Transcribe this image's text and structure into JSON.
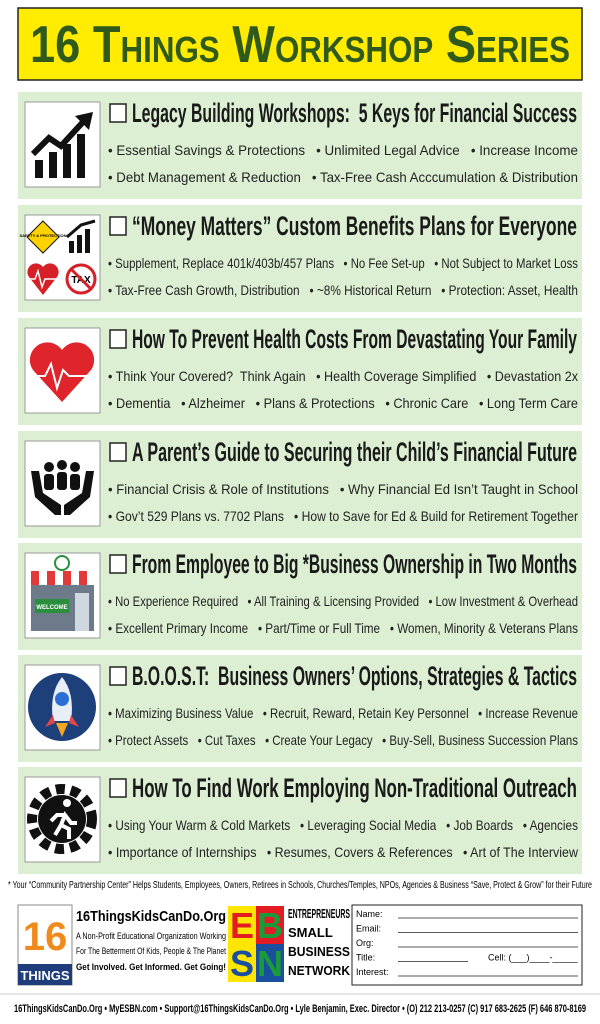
{
  "header": {
    "title": "16 Things Workshop Series"
  },
  "workshops": [
    {
      "title": "Legacy Building Workshops:  5 Keys for Financial Success",
      "lines": [
        [
          "• Essential Savings & Protections",
          "• Unlimited Legal Advice",
          "• Increase Income"
        ],
        [
          "• Debt Management & Reduction",
          "• Tax-Free Cash Acccumulation & Distribution"
        ]
      ]
    },
    {
      "title": "“Money Matters” Custom Benefits Plans for Everyone",
      "icon_text": [
        "SAFETY & PROTECTION",
        "TAX"
      ],
      "lines": [
        [
          "• Supplement, Replace 401k/403b/457 Plans",
          "• No Fee Set-up",
          "• Not Subject to Market Loss"
        ],
        [
          "• Tax-Free Cash Growth, Distribution",
          "• ~8% Historical Return",
          "• Protection: Asset, Health"
        ]
      ]
    },
    {
      "title": "How To Prevent Health Costs From Devastating Your Family",
      "lines": [
        [
          "• Think Your Covered?  Think Again",
          "• Health Coverage Simplified",
          "• Devastation 2x"
        ],
        [
          "• Dementia",
          "• Alzheimer",
          "• Plans & Protections",
          "• Chronic Care",
          "• Long Term Care"
        ]
      ]
    },
    {
      "title": "A Parent’s Guide to Securing their Child’s Financial Future",
      "lines": [
        [
          "• Financial Crisis & Role of Institutions",
          "• Why Financial Ed Isn’t Taught in School"
        ],
        [
          "• Gov’t 529 Plans vs. 7702 Plans",
          "• How to Save for Ed & Build for Retirement Together"
        ]
      ]
    },
    {
      "title": "From Employee to Big *Business Ownership in Two Months",
      "icon_text": [
        "WELCOME"
      ],
      "lines": [
        [
          "• No Experience Required",
          "• All Training & Licensing Provided",
          "• Low Investment & Overhead"
        ],
        [
          "• Excellent Primary Income",
          "• Part/Time or Full Time",
          "• Women, Minority & Veterans Plans"
        ]
      ]
    },
    {
      "title": "B.O.O.S.T:  Business Owners’ Options, Strategies & Tactics",
      "lines": [
        [
          "• Maximizing Business Value",
          "• Recruit, Reward, Retain Key Personnel",
          "• Increase Revenue"
        ],
        [
          "• Protect Assets",
          "• Cut Taxes",
          "• Create Your Legacy",
          "• Buy-Sell, Business Succession Plans"
        ]
      ]
    },
    {
      "title": "How To Find Work Employing Non-Traditional Outreach",
      "lines": [
        [
          "• Using Your Warm & Cold Markets",
          "• Leveraging Social Media",
          "• Job Boards",
          "• Agencies"
        ],
        [
          "• Importance of Internships",
          "• Resumes, Covers & References",
          "• Art of The Interview"
        ]
      ]
    }
  ],
  "footnote": "* Your “Community Partnership Center” Helps Students, Employees, Owners, Retirees in Schools, Churches/Temples, NPOs, Agencies & Business “Save, Protect & Grow” for their Future",
  "org": {
    "logo": [
      "16",
      "THINGS"
    ],
    "name": "16ThingsKidsCanDo.Org",
    "tagline": [
      "A Non-Profit Educational Organization Working",
      "For The Betterment Of Kids, People & The Planet",
      "Get Involved. Get Informed. Get Going!"
    ]
  },
  "ebsn": {
    "letters": [
      "E",
      "B",
      "S",
      "N"
    ],
    "words": [
      "ENTREPRENEURS",
      "SMALL",
      "BUSINESS",
      "NETWORK"
    ]
  },
  "form": {
    "fields": [
      "Name:",
      "Email:",
      "Org:",
      "Title:",
      "Interest:"
    ],
    "cell": "Cell: (___)____-_____"
  },
  "footer": "16ThingsKidsCanDo.Org • MyESBN.com • Support@16ThingsKidsCanDo.Org • Lyle Benjamin, Exec. Director • (O) 212 213-0257 (C) 917 683-2625 (F) 646 870-8169"
}
